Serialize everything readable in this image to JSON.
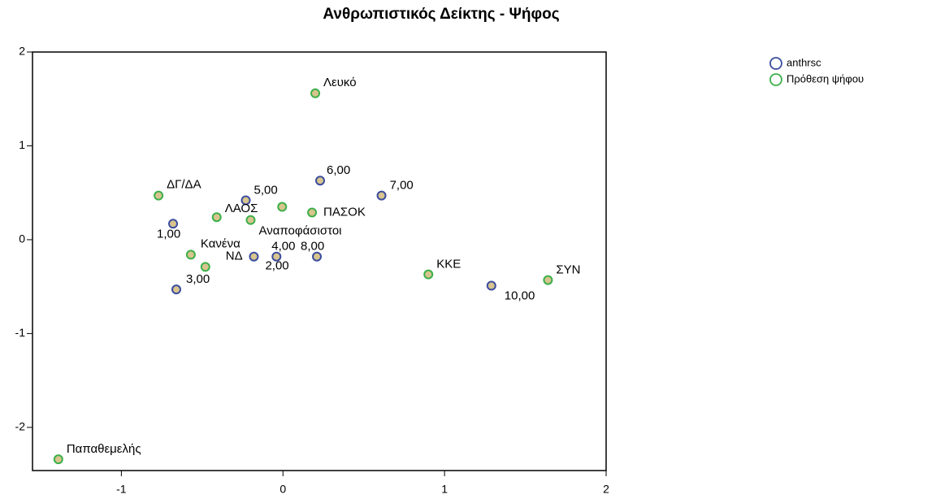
{
  "chart_data": {
    "type": "scatter",
    "title": "Ανθρωπιστικός Δείκτης - Ψήφος",
    "xlim": [
      -1.55,
      2
    ],
    "ylim": [
      -2.46,
      2
    ],
    "xticks": [
      -1,
      0,
      1,
      2
    ],
    "yticks": [
      -2,
      -1,
      0,
      1,
      2
    ],
    "legend": "top-right",
    "marker_fill": "#d8c48e",
    "series": [
      {
        "name": "anthrsc",
        "color": "#3b4d9e",
        "x": [
          -0.68,
          -0.18,
          -0.66,
          -0.04,
          -0.23,
          0.23,
          0.61,
          0.21,
          1.29
        ],
        "values": [
          0.17,
          -0.18,
          -0.53,
          -0.18,
          0.42,
          0.63,
          0.47,
          -0.18,
          -0.49
        ],
        "labels": [
          "1,00",
          "2,00",
          "3,00",
          "4,00",
          "5,00",
          "6,00",
          "7,00",
          "8,00",
          "10,00"
        ]
      },
      {
        "name": "Πρόθεση ψήφου",
        "color": "#3cb04a",
        "x": [
          0.2,
          -0.77,
          -0.41,
          -0.005,
          -0.2,
          0.18,
          -0.57,
          -0.48,
          0.9,
          1.64,
          -1.39
        ],
        "values": [
          1.56,
          0.47,
          0.24,
          0.35,
          0.21,
          0.29,
          -0.16,
          -0.29,
          -0.37,
          -0.43,
          -2.34
        ],
        "labels": [
          "Λευκό",
          "ΔΓ/ΔΑ",
          "ΛΑΟΣ",
          null,
          "Αναποφάσιστοι",
          "ΠΑΣΟΚ",
          "Κανένα",
          "ΝΔ",
          "ΚΚΕ",
          "ΣΥΝ",
          "Παπαθεμελής"
        ]
      }
    ]
  }
}
